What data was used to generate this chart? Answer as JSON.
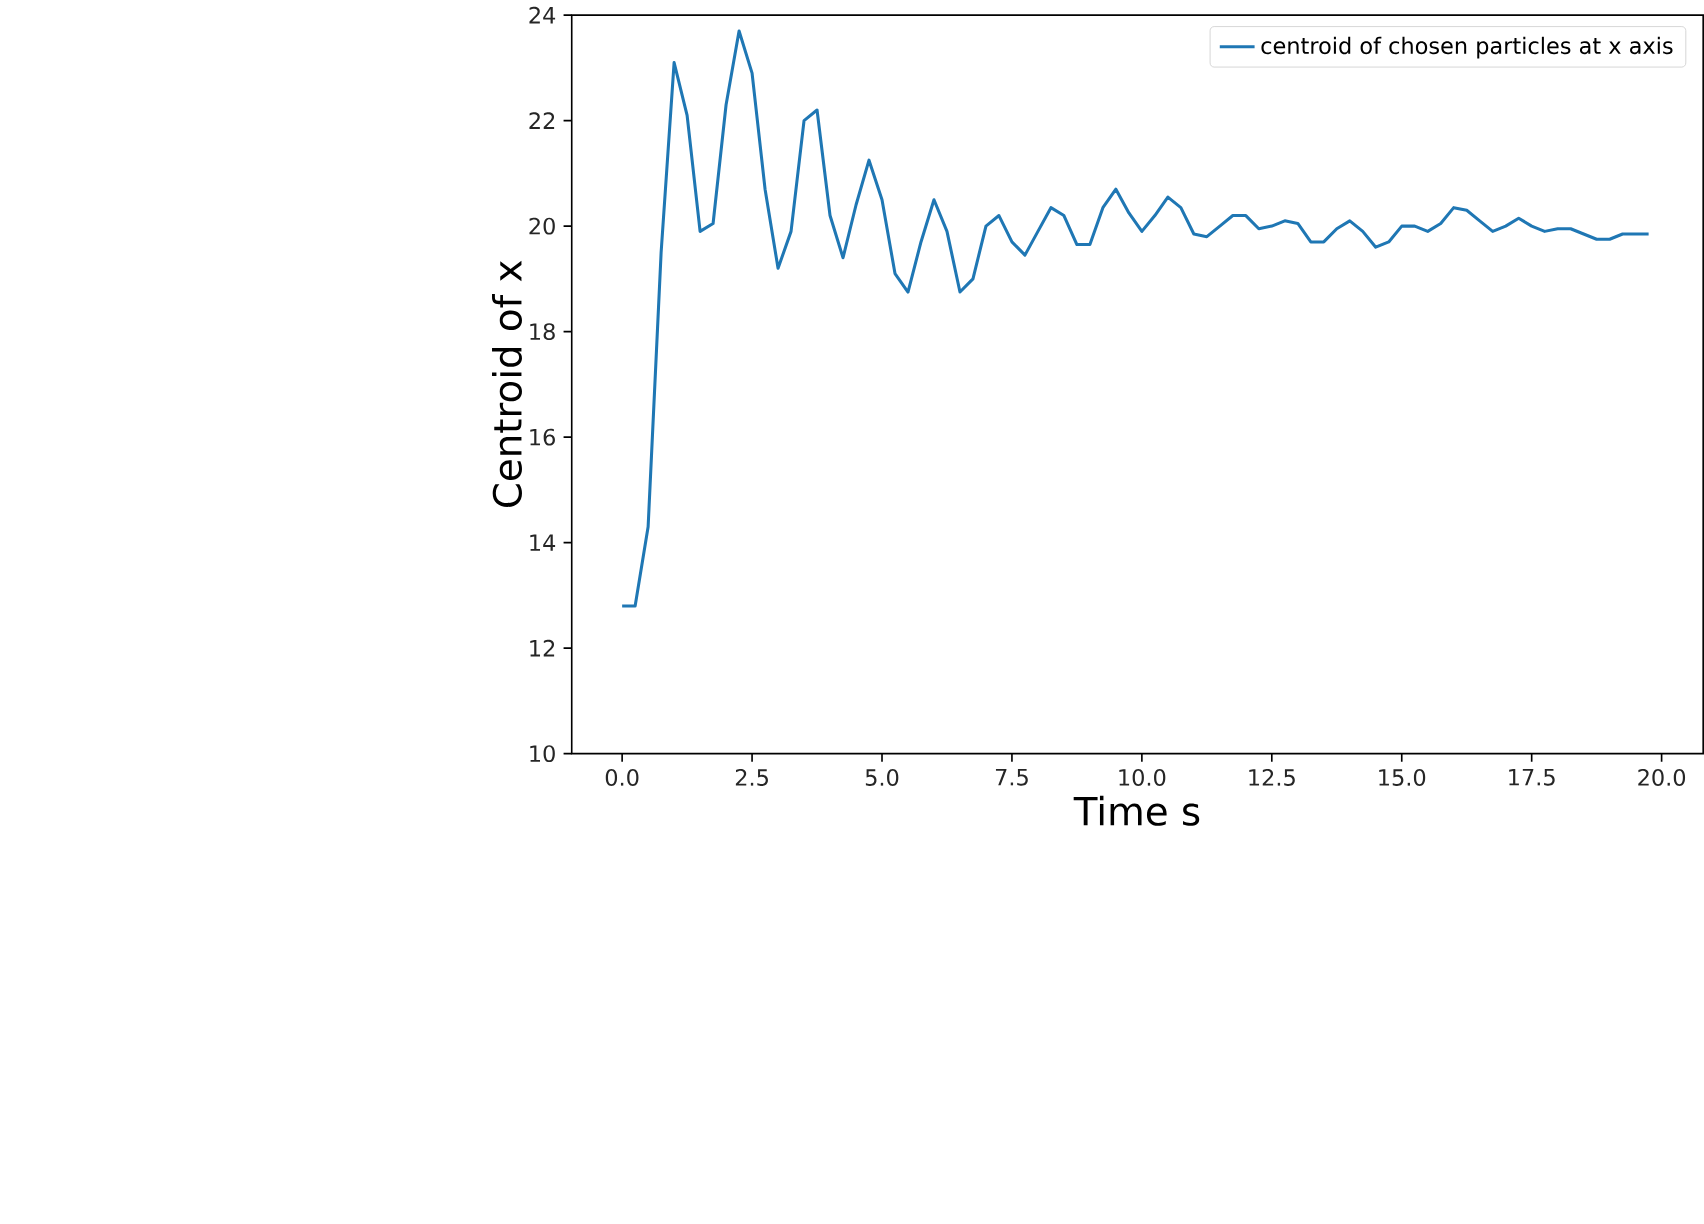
{
  "chart_data": {
    "type": "line",
    "xlabel": "Time s",
    "ylabel": "Centroid of x",
    "x": [
      0,
      0.25,
      0.5,
      0.75,
      1.0,
      1.25,
      1.5,
      1.75,
      2.0,
      2.25,
      2.5,
      2.75,
      3.0,
      3.25,
      3.5,
      3.75,
      4.0,
      4.25,
      4.5,
      4.75,
      5.0,
      5.25,
      5.5,
      5.75,
      6.0,
      6.25,
      6.5,
      6.75,
      7.0,
      7.25,
      7.5,
      7.75,
      8.0,
      8.25,
      8.5,
      8.75,
      9.0,
      9.25,
      9.5,
      9.75,
      10.0,
      10.25,
      10.5,
      10.75,
      11.0,
      11.25,
      11.5,
      11.75,
      12.0,
      12.25,
      12.5,
      12.75,
      13.0,
      13.25,
      13.5,
      13.75,
      14.0,
      14.25,
      14.5,
      14.75,
      15.0,
      15.25,
      15.5,
      15.75,
      16.0,
      16.25,
      16.5,
      16.75,
      17.0,
      17.25,
      17.5,
      17.75,
      18.0,
      18.25,
      18.5,
      18.75,
      19.0,
      19.25,
      19.5,
      19.75
    ],
    "series": [
      {
        "name": "centroid of chosen particles at x axis",
        "color": "#1f77b4",
        "values": [
          12.8,
          12.8,
          14.3,
          19.5,
          23.1,
          22.1,
          19.9,
          20.05,
          22.3,
          23.7,
          22.9,
          20.7,
          19.2,
          19.9,
          22.0,
          22.2,
          20.2,
          19.4,
          20.4,
          21.25,
          20.5,
          19.1,
          18.75,
          19.7,
          20.5,
          19.9,
          18.75,
          19.0,
          20.0,
          20.2,
          19.7,
          19.45,
          19.9,
          20.35,
          20.2,
          19.65,
          19.65,
          20.35,
          20.7,
          20.25,
          19.9,
          20.2,
          20.55,
          20.35,
          19.85,
          19.8,
          20.0,
          20.2,
          20.2,
          19.95,
          20.0,
          20.1,
          20.05,
          19.7,
          19.7,
          19.95,
          20.1,
          19.9,
          19.6,
          19.7,
          20.0,
          20.0,
          19.9,
          20.05,
          20.35,
          20.3,
          20.1,
          19.9,
          20.0,
          20.15,
          20.0,
          19.9,
          19.95,
          19.95,
          19.85,
          19.75,
          19.75,
          19.85,
          19.85,
          19.85
        ]
      }
    ],
    "xlim": [
      -0.97,
      20.8
    ],
    "ylim": [
      10,
      24
    ],
    "xticks": [
      {
        "value": 0,
        "label": "0.0"
      },
      {
        "value": 2.5,
        "label": "2.5"
      },
      {
        "value": 5,
        "label": "5.0"
      },
      {
        "value": 7.5,
        "label": "7.5"
      },
      {
        "value": 10,
        "label": "10.0"
      },
      {
        "value": 12.5,
        "label": "12.5"
      },
      {
        "value": 15,
        "label": "15.0"
      },
      {
        "value": 17.5,
        "label": "17.5"
      },
      {
        "value": 20,
        "label": "20.0"
      }
    ],
    "yticks": [
      10,
      12,
      14,
      16,
      18,
      20,
      22,
      24
    ],
    "legend": "top right",
    "grid": false,
    "marker": "none",
    "line_style": "solid"
  }
}
